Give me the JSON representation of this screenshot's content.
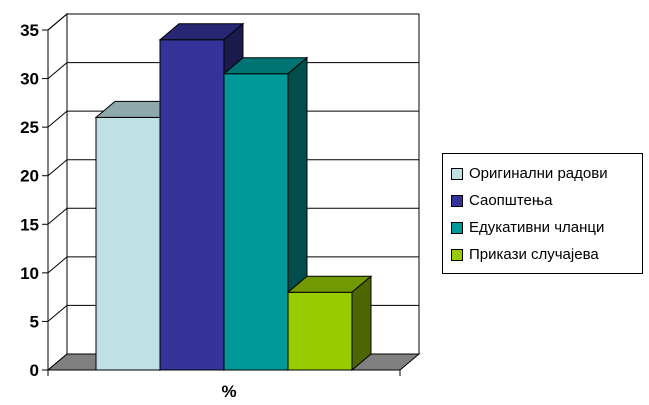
{
  "chart_data": {
    "type": "bar",
    "categories": [
      "%"
    ],
    "series": [
      {
        "name": "Оригинални радови",
        "values": [
          26
        ],
        "color": "#bfe1e3"
      },
      {
        "name": "Саопштења",
        "values": [
          34
        ],
        "color": "#333399"
      },
      {
        "name": "Едукативни чланци",
        "values": [
          30.5
        ],
        "color": "#009999"
      },
      {
        "name": "Прикази случајева",
        "values": [
          8
        ],
        "color": "#99cc00"
      }
    ],
    "ylim": [
      0,
      35
    ],
    "yticks": [
      "0",
      "5",
      "10",
      "15",
      "20",
      "25",
      "30",
      "35"
    ],
    "grid": true,
    "three_d": true,
    "legend_position": "right"
  }
}
